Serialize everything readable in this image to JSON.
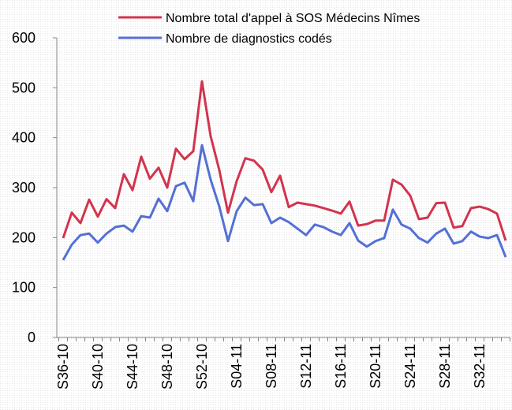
{
  "chart_data": {
    "type": "line",
    "categories": [
      "S36-10",
      null,
      null,
      null,
      "S40-10",
      null,
      null,
      null,
      "S44-10",
      null,
      null,
      null,
      "S48-10",
      null,
      null,
      null,
      "S52-10",
      null,
      null,
      null,
      "S04-11",
      null,
      null,
      null,
      "S08-11",
      null,
      null,
      null,
      "S12-11",
      null,
      null,
      null,
      "S16-11",
      null,
      null,
      null,
      "S20-11",
      null,
      null,
      null,
      "S24-11",
      null,
      null,
      null,
      "S28-11",
      null,
      null,
      null,
      "S32-11",
      null,
      null,
      null
    ],
    "series": [
      {
        "name": "Nombre total d'appel à SOS Médecins Nîmes",
        "color": "#d2344e",
        "values": [
          199,
          250,
          229,
          276,
          242,
          277,
          259,
          327,
          295,
          362,
          318,
          340,
          300,
          378,
          357,
          373,
          513,
          403,
          335,
          250,
          313,
          359,
          354,
          336,
          291,
          324,
          261,
          270,
          267,
          264,
          259,
          254,
          248,
          272,
          224,
          227,
          234,
          234,
          316,
          306,
          284,
          237,
          240,
          269,
          270,
          220,
          223,
          259,
          262,
          257,
          248,
          194
        ]
      },
      {
        "name": "Nombre de diagnostics codés",
        "color": "#5470d4",
        "values": [
          155,
          186,
          205,
          208,
          190,
          208,
          221,
          224,
          212,
          243,
          240,
          278,
          253,
          303,
          310,
          273,
          385,
          316,
          262,
          193,
          253,
          280,
          265,
          267,
          229,
          240,
          231,
          218,
          205,
          226,
          221,
          212,
          205,
          229,
          194,
          182,
          193,
          199,
          256,
          226,
          218,
          199,
          190,
          208,
          218,
          188,
          193,
          212,
          202,
          199,
          205,
          161
        ]
      }
    ],
    "ylim": [
      0,
      600
    ],
    "yticks": [
      0,
      100,
      200,
      300,
      400,
      500,
      600
    ]
  }
}
